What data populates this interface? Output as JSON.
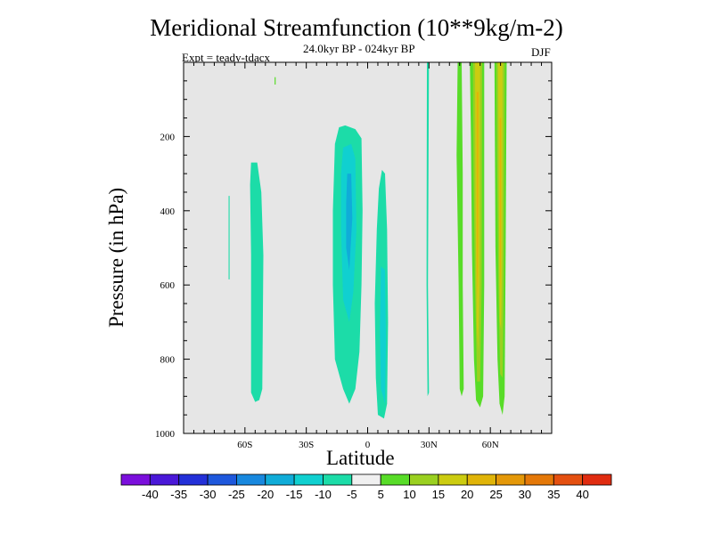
{
  "title": "Meridional Streamfunction (10**9kg/m-2)",
  "subtitle": "24.0kyr BP - 024kyr BP",
  "left_label": "Expt = teady-tdacx",
  "right_label": "DJF",
  "chart_data": {
    "type": "heatmap",
    "title": "Meridional Streamfunction (10**9kg/m-2)",
    "subtitle": "24.0kyr BP - 024kyr BP",
    "xlabel": "Latitude",
    "ylabel": "Pressure (in hPa)",
    "xlim": [
      -90,
      90
    ],
    "ylim": [
      1000,
      0
    ],
    "x_ticks": [
      -60,
      -30,
      0,
      30,
      60
    ],
    "x_tick_labels": [
      "60S",
      "30S",
      "0",
      "30N",
      "60N"
    ],
    "y_ticks": [
      200,
      400,
      600,
      800,
      1000
    ],
    "y_tick_labels": [
      "200",
      "400",
      "600",
      "800",
      "1000"
    ],
    "missing_color": "#e6e6e6",
    "colorbar": {
      "levels": [
        "-40",
        "-35",
        "-30",
        "-25",
        "-20",
        "-15",
        "-10",
        "-5",
        "5",
        "10",
        "15",
        "20",
        "25",
        "30",
        "35",
        "40"
      ],
      "colors": [
        "#7b0fdc",
        "#4a18d8",
        "#2330d8",
        "#1e58dc",
        "#1888de",
        "#10acd8",
        "#10d0d0",
        "#1cdca8",
        "#f0f0f0",
        "#58dc28",
        "#9ad020",
        "#cccc10",
        "#e0b408",
        "#e49808",
        "#e47808",
        "#e45010",
        "#e02c10"
      ]
    },
    "features": [
      {
        "name": "tick-60S-40",
        "color_index": 7,
        "points": [
          [
            -68,
            360
          ],
          [
            -67.5,
            360
          ],
          [
            -67.5,
            585
          ],
          [
            -68,
            585
          ]
        ]
      },
      {
        "name": "cell-60S",
        "color_index": 7,
        "points": [
          [
            -57,
            270
          ],
          [
            -54,
            270
          ],
          [
            -52,
            350
          ],
          [
            -51,
            520
          ],
          [
            -51.5,
            880
          ],
          [
            -53,
            910
          ],
          [
            -55,
            915
          ],
          [
            -57,
            890
          ],
          [
            -57,
            520
          ],
          [
            -57.5,
            330
          ]
        ]
      },
      {
        "name": "speck-50S",
        "color_index": 9,
        "points": [
          [
            -45.5,
            40
          ],
          [
            -45,
            40
          ],
          [
            -45,
            60
          ],
          [
            -45.5,
            60
          ]
        ]
      },
      {
        "name": "cell-eq-outer",
        "color_index": 7,
        "points": [
          [
            -14,
            175
          ],
          [
            -11,
            170
          ],
          [
            -6,
            180
          ],
          [
            -3,
            205
          ],
          [
            -2.5,
            400
          ],
          [
            -3,
            600
          ],
          [
            -4,
            780
          ],
          [
            -6,
            880
          ],
          [
            -9,
            920
          ],
          [
            -12,
            880
          ],
          [
            -16,
            800
          ],
          [
            -17,
            600
          ],
          [
            -17,
            400
          ],
          [
            -16,
            220
          ]
        ]
      },
      {
        "name": "cell-eq-inner",
        "color_index": 6,
        "points": [
          [
            -12,
            230
          ],
          [
            -8,
            220
          ],
          [
            -6,
            260
          ],
          [
            -5.5,
            450
          ],
          [
            -7,
            620
          ],
          [
            -9,
            700
          ],
          [
            -12,
            640
          ],
          [
            -13,
            450
          ],
          [
            -13,
            300
          ]
        ]
      },
      {
        "name": "cell-eq-core",
        "color_index": 5,
        "points": [
          [
            -10,
            300
          ],
          [
            -8,
            300
          ],
          [
            -7.5,
            420
          ],
          [
            -9,
            560
          ],
          [
            -10.5,
            500
          ],
          [
            -10.5,
            380
          ]
        ]
      },
      {
        "name": "cell-5N-outer",
        "color_index": 7,
        "points": [
          [
            7,
            290
          ],
          [
            8.5,
            300
          ],
          [
            9.5,
            450
          ],
          [
            10,
            700
          ],
          [
            9.5,
            920
          ],
          [
            8,
            960
          ],
          [
            5,
            950
          ],
          [
            4,
            850
          ],
          [
            3.5,
            650
          ],
          [
            4.5,
            450
          ],
          [
            5.5,
            340
          ]
        ]
      },
      {
        "name": "cell-5N-inner",
        "color_index": 6,
        "points": [
          [
            6.5,
            550
          ],
          [
            8.5,
            560
          ],
          [
            9,
            750
          ],
          [
            8.5,
            920
          ],
          [
            6.5,
            880
          ],
          [
            6,
            720
          ]
        ]
      },
      {
        "name": "line-30N",
        "color_index": 7,
        "points": [
          [
            29,
            0
          ],
          [
            30,
            0
          ],
          [
            29.5,
            600
          ],
          [
            30,
            890
          ],
          [
            29.3,
            900
          ],
          [
            28.8,
            600
          ]
        ]
      },
      {
        "name": "band-45N",
        "color_index": 9,
        "points": [
          [
            44,
            0
          ],
          [
            46,
            0
          ],
          [
            46.5,
            300
          ],
          [
            46.5,
            600
          ],
          [
            47,
            880
          ],
          [
            46,
            900
          ],
          [
            45,
            880
          ],
          [
            44.5,
            600
          ],
          [
            43.5,
            250
          ]
        ]
      },
      {
        "name": "band-55N-outer",
        "color_index": 9,
        "points": [
          [
            50,
            0
          ],
          [
            57,
            0
          ],
          [
            57,
            600
          ],
          [
            56.5,
            900
          ],
          [
            55,
            930
          ],
          [
            53,
            910
          ],
          [
            52,
            800
          ],
          [
            51,
            500
          ],
          [
            50.5,
            200
          ]
        ]
      },
      {
        "name": "band-55N-mid",
        "color_index": 10,
        "points": [
          [
            51.5,
            0
          ],
          [
            56,
            0
          ],
          [
            55.8,
            600
          ],
          [
            55,
            860
          ],
          [
            53.5,
            860
          ],
          [
            52.5,
            600
          ],
          [
            51.8,
            300
          ]
        ]
      },
      {
        "name": "band-55N-inner",
        "color_index": 11,
        "points": [
          [
            52.5,
            0
          ],
          [
            55,
            0
          ],
          [
            54.8,
            600
          ],
          [
            54,
            780
          ],
          [
            53.3,
            700
          ],
          [
            52.8,
            400
          ]
        ]
      },
      {
        "name": "band-55N-core",
        "color_index": 12,
        "points": [
          [
            53.3,
            80
          ],
          [
            54.2,
            80
          ],
          [
            54,
            500
          ],
          [
            53.8,
            640
          ],
          [
            53.4,
            560
          ]
        ]
      },
      {
        "name": "band-66N-outer",
        "color_index": 9,
        "points": [
          [
            62,
            0
          ],
          [
            68,
            0
          ],
          [
            67.5,
            500
          ],
          [
            67,
            900
          ],
          [
            66,
            950
          ],
          [
            64.5,
            920
          ],
          [
            63.5,
            800
          ],
          [
            62.5,
            500
          ]
        ]
      },
      {
        "name": "band-66N-mid",
        "color_index": 10,
        "points": [
          [
            63,
            0
          ],
          [
            67,
            0
          ],
          [
            66.5,
            600
          ],
          [
            66,
            850
          ],
          [
            64.8,
            840
          ],
          [
            64,
            600
          ],
          [
            63.3,
            250
          ]
        ]
      },
      {
        "name": "band-66N-inner",
        "color_index": 11,
        "points": [
          [
            63.8,
            0
          ],
          [
            66,
            0
          ],
          [
            65.8,
            500
          ],
          [
            65.3,
            720
          ],
          [
            64.6,
            700
          ],
          [
            64.2,
            400
          ]
        ]
      },
      {
        "name": "band-66N-core",
        "color_index": 12,
        "points": [
          [
            64.6,
            150
          ],
          [
            65.3,
            150
          ],
          [
            65.2,
            500
          ],
          [
            65,
            620
          ],
          [
            64.7,
            560
          ]
        ]
      }
    ]
  }
}
